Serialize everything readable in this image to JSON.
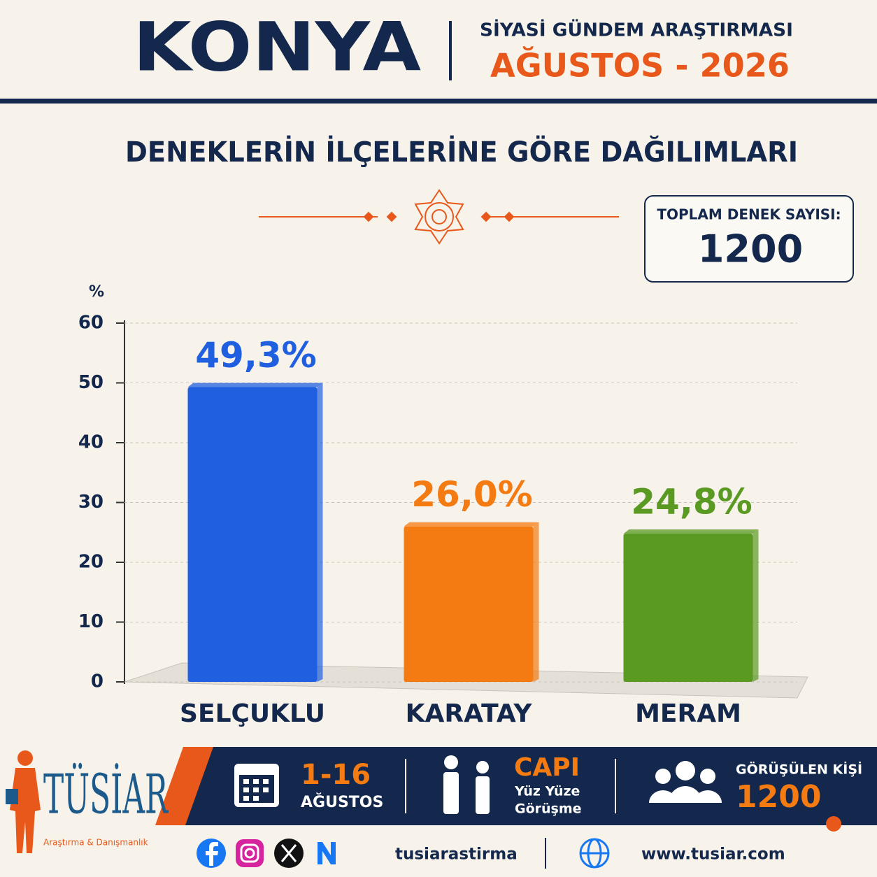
{
  "header": {
    "title": "KONYA",
    "subtitle": "SİYASİ GÜNDEM ARAŞTIRMASI",
    "period": "AĞUSTOS - 2026"
  },
  "total": {
    "label": "TOPLAM DENEK SAYISI:",
    "value": 1200
  },
  "chart_data": {
    "type": "bar",
    "title": "DENEKLERİN İLÇELERİNE GÖRE DAĞILIMLARI",
    "y_label": "%",
    "categories": [
      "SELÇUKLU",
      "KARATAY",
      "MERAM"
    ],
    "values": [
      49.3,
      26.0,
      24.8
    ],
    "value_labels": [
      "49,3%",
      "26,0%",
      "24,8%"
    ],
    "colors": [
      "#1f5fe0",
      "#f47a12",
      "#5a9a22"
    ],
    "ylim": [
      0,
      60
    ],
    "yticks": [
      0,
      10,
      20,
      30,
      40,
      50,
      60
    ],
    "grid": true
  },
  "footer": {
    "logo": "TÜSİAR",
    "logo_tagline": "Araştırma & Danışmanlık",
    "dates": "1-16",
    "month": "AĞUSTOS",
    "method": "CAPI",
    "method_line1": "Yüz Yüze",
    "method_line2": "Görüşme",
    "interviewed_label": "GÖRÜŞÜLEN KİŞİ",
    "interviewed": 1200,
    "social": "tusiarastirma",
    "website": "www.tusiar.com"
  }
}
